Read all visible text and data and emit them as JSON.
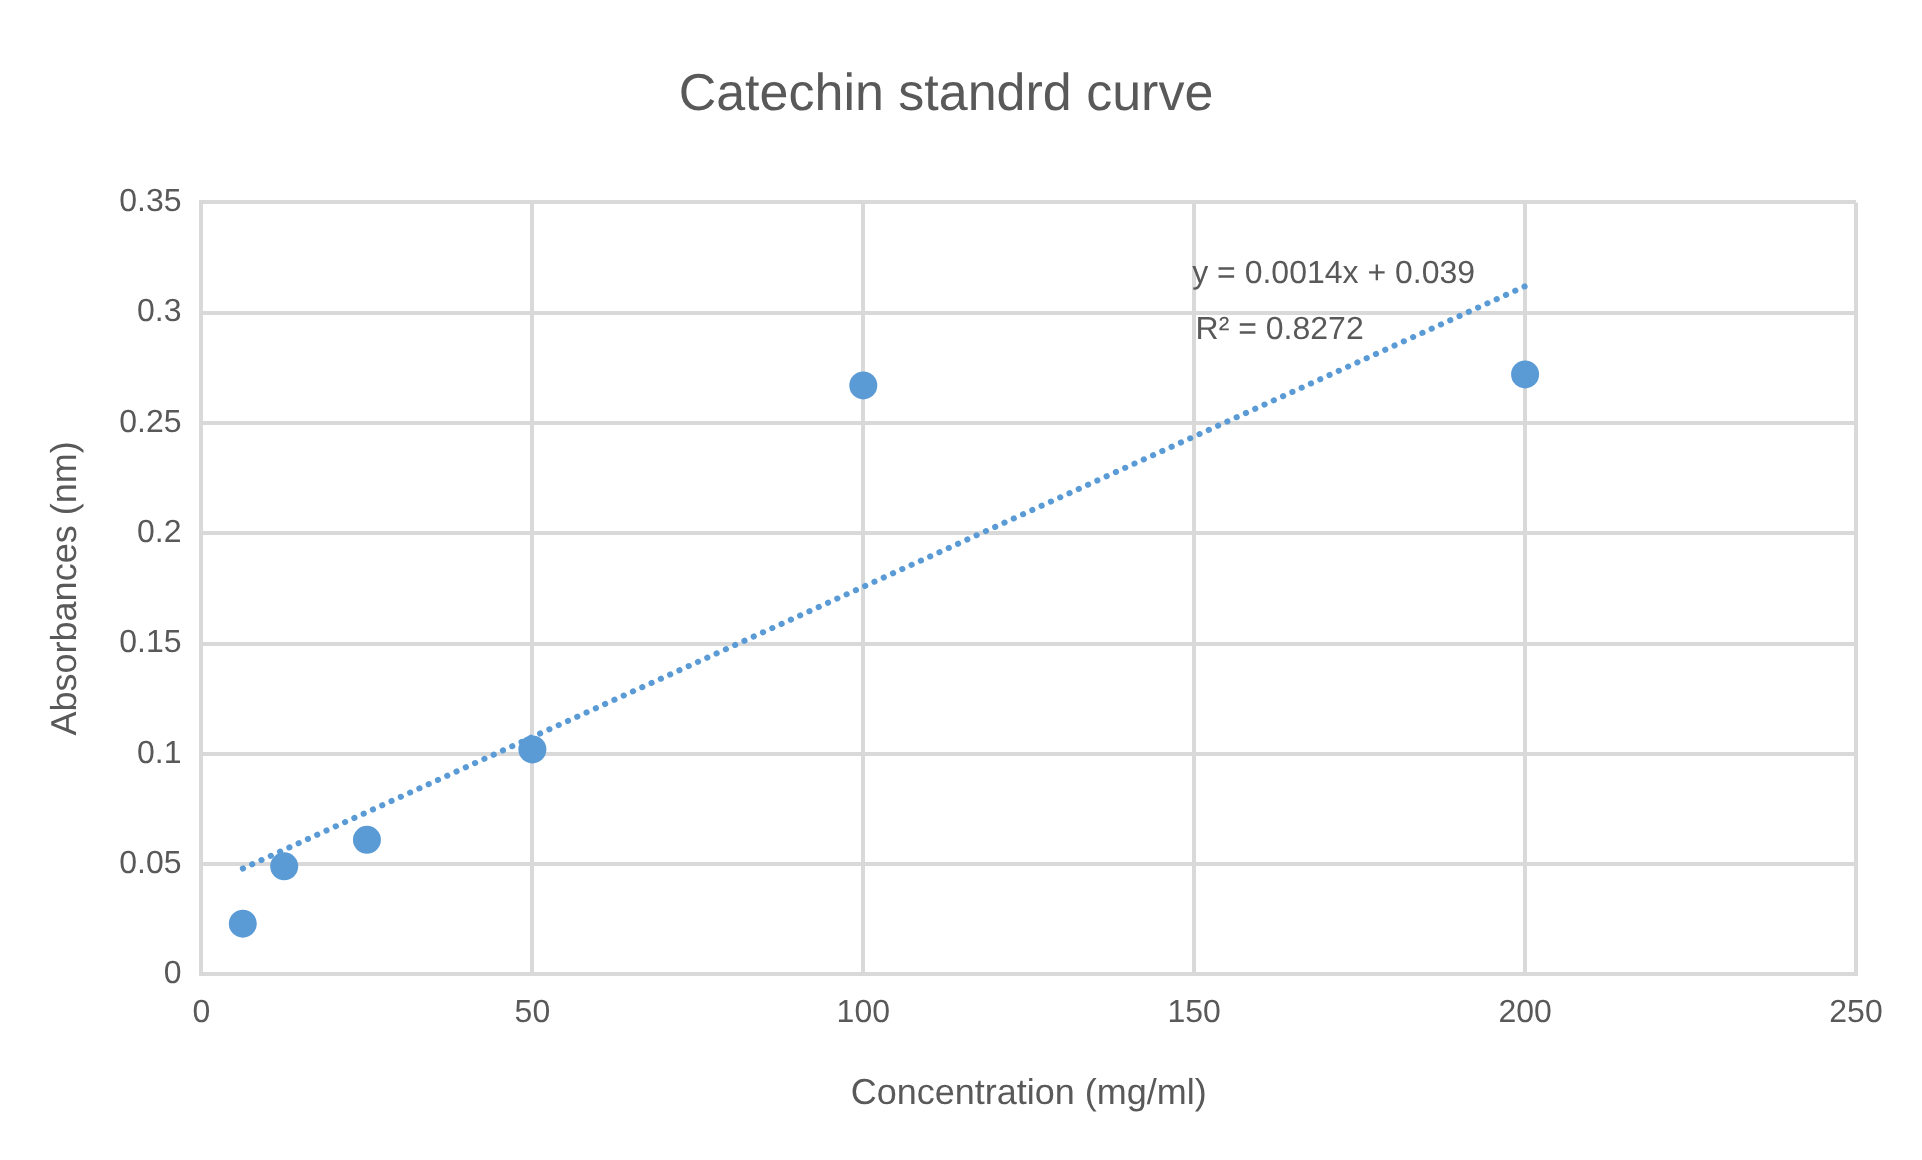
{
  "chart_data": {
    "type": "scatter",
    "title": "Catechin standrd curve",
    "xlabel": "Concentration (mg/ml)",
    "ylabel": "Absorbances (nm)",
    "series": [
      {
        "type": "scatter",
        "color": "#5b9bd5",
        "marker": "circle",
        "x": [
          6.25,
          12.5,
          25,
          50,
          100,
          200
        ],
        "values": [
          0.023,
          0.049,
          0.061,
          0.102,
          0.267,
          0.272
        ]
      },
      {
        "type": "line",
        "color": "#5b9bd5",
        "marker": "none",
        "line_style": "dotted",
        "x": [
          6.25,
          200
        ],
        "values": [
          0.048,
          0.312
        ]
      }
    ],
    "annotations": [
      "y = 0.0014x + 0.039",
      "R² = 0.8272"
    ],
    "xlim": [
      0,
      250
    ],
    "xticks": [
      0,
      50,
      100,
      150,
      200,
      250
    ],
    "ylim": [
      0,
      0.35
    ],
    "yticks": [
      0,
      0.05,
      0.1,
      0.15,
      0.2,
      0.25,
      0.3,
      0.35
    ],
    "grid": true,
    "legend": false
  }
}
